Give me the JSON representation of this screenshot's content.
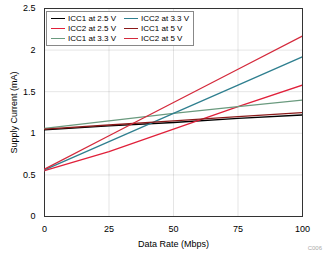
{
  "chart_data": {
    "type": "line",
    "x_label": "Data Rate (Mbps)",
    "y_label": "Supply Current (mA)",
    "annotation": "C006",
    "x": [
      0,
      25,
      50,
      75,
      100
    ],
    "series": [
      {
        "name": "ICC1 at 2.5 V",
        "color": "#000000",
        "values": [
          1.04,
          1.09,
          1.13,
          1.18,
          1.22
        ]
      },
      {
        "name": "ICC2 at 2.5 V",
        "color": "#e0203a",
        "values": [
          0.55,
          0.78,
          1.05,
          1.32,
          1.58
        ]
      },
      {
        "name": "ICC1 at 3.3 V",
        "color": "#6a9a7e",
        "values": [
          1.06,
          1.15,
          1.24,
          1.32,
          1.4
        ]
      },
      {
        "name": "ICC2 at 3.3 V",
        "color": "#2f7f8f",
        "values": [
          0.56,
          0.9,
          1.24,
          1.58,
          1.92
        ]
      },
      {
        "name": "ICC1 at 5 V",
        "color": "#8b1a1a",
        "values": [
          1.05,
          1.1,
          1.15,
          1.2,
          1.25
        ]
      },
      {
        "name": "ICC2 at 5 V",
        "color": "#d42a3c",
        "values": [
          0.57,
          0.97,
          1.37,
          1.77,
          2.17
        ]
      }
    ],
    "xlim": [
      0,
      100
    ],
    "xticks": [
      0,
      25,
      50,
      75,
      100
    ],
    "ylim": [
      0,
      2.5
    ],
    "yticks": [
      0,
      0.5,
      1,
      1.5,
      2,
      2.5
    ],
    "grid": true,
    "legend": "top-left"
  }
}
